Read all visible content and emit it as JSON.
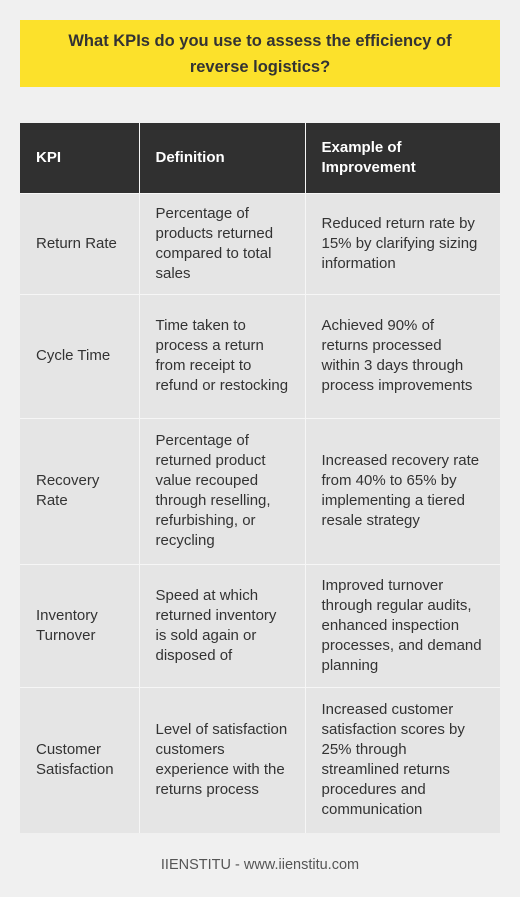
{
  "title": "What KPIs do you use to assess the efficiency of reverse logistics?",
  "table": {
    "headers": [
      "KPI",
      "Definition",
      "Example of Improvement"
    ],
    "rows": [
      {
        "kpi": "Return Rate",
        "definition": "Percentage of products returned compared to total sales",
        "example": "Reduced return rate by 15% by clarifying sizing information"
      },
      {
        "kpi": "Cycle Time",
        "definition": "Time taken to process a return from receipt to refund or restocking",
        "example": "Achieved 90% of returns processed within 3 days through process improvements"
      },
      {
        "kpi": "Recovery Rate",
        "definition": "Percentage of returned product value recouped through reselling, refurbishing, or recycling",
        "example": "Increased recovery rate from 40% to 65% by implementing a tiered resale strategy"
      },
      {
        "kpi": "Inventory Turnover",
        "definition": "Speed at which returned inventory is sold again or disposed of",
        "example": "Improved turnover through regular audits, enhanced inspection processes, and demand planning"
      },
      {
        "kpi": "Customer Satisfaction",
        "definition": "Level of satisfaction customers experience with the returns process",
        "example": "Increased customer satisfaction scores by 25% through streamlined returns procedures and communication"
      }
    ]
  },
  "footer": "IIENSTITU - www.iienstitu.com",
  "colors": {
    "title_background": "#fce12b",
    "header_background": "#303030",
    "row_background": "#e5e5e5",
    "page_background": "#f0f0f0"
  }
}
